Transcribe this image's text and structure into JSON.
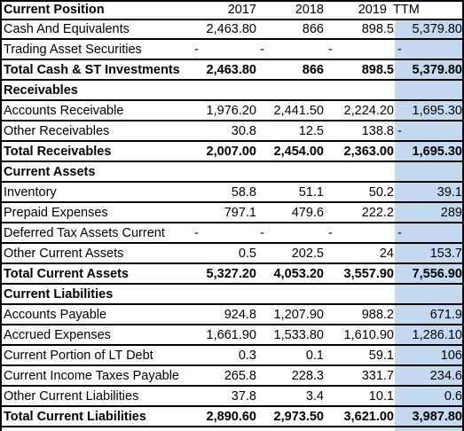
{
  "header": {
    "title": "Current Position",
    "years": [
      "2017",
      "2018",
      "2019"
    ],
    "ttm": "TTM"
  },
  "rows": [
    {
      "label": "Cash And Equivalents",
      "values": [
        "2,463.80",
        "866",
        "898.5",
        "5,379.80"
      ],
      "bold": false
    },
    {
      "label": "Trading Asset Securities",
      "values": [
        "-",
        "-",
        "-",
        "-"
      ],
      "bold": false
    },
    {
      "label": "Total Cash & ST Investments",
      "values": [
        "2,463.80",
        "866",
        "898.5",
        "5,379.80"
      ],
      "bold": true
    },
    {
      "label": "Receivables",
      "values": [
        "",
        "",
        "",
        ""
      ],
      "bold": true
    },
    {
      "label": "Accounts Receivable",
      "values": [
        "1,976.20",
        "2,441.50",
        "2,224.20",
        "1,695.30"
      ],
      "bold": false
    },
    {
      "label": "Other Receivables",
      "values": [
        "30.8",
        "12.5",
        "138.8",
        "-"
      ],
      "bold": false
    },
    {
      "label": "Total Receivables",
      "values": [
        "2,007.00",
        "2,454.00",
        "2,363.00",
        "1,695.30"
      ],
      "bold": true
    },
    {
      "label": "Current Assets",
      "values": [
        "",
        "",
        "",
        ""
      ],
      "bold": true
    },
    {
      "label": "Inventory",
      "values": [
        "58.8",
        "51.1",
        "50.2",
        "39.1"
      ],
      "bold": false
    },
    {
      "label": "Prepaid Expenses",
      "values": [
        "797.1",
        "479.6",
        "222.2",
        "289"
      ],
      "bold": false
    },
    {
      "label": "Deferred Tax Assets Current",
      "values": [
        "-",
        "-",
        "-",
        "-"
      ],
      "bold": false
    },
    {
      "label": "Other Current Assets",
      "values": [
        "0.5",
        "202.5",
        "24",
        "153.7"
      ],
      "bold": false
    },
    {
      "label": "Total Current Assets",
      "values": [
        "5,327.20",
        "4,053.20",
        "3,557.90",
        "7,556.90"
      ],
      "bold": true
    },
    {
      "label": "Current Liabilities",
      "values": [
        "",
        "",
        "",
        ""
      ],
      "bold": true
    },
    {
      "label": "Accounts Payable",
      "values": [
        "924.8",
        "1,207.90",
        "988.2",
        "671.9"
      ],
      "bold": false
    },
    {
      "label": "Accrued Expenses",
      "values": [
        "1,661.90",
        "1,533.80",
        "1,610.90",
        "1,286.10"
      ],
      "bold": false
    },
    {
      "label": "Current Portion of LT Debt",
      "values": [
        "0.3",
        "0.1",
        "59.1",
        "106"
      ],
      "bold": false
    },
    {
      "label": "Current Income Taxes Payable",
      "values": [
        "265.8",
        "228.3",
        "331.7",
        "234.6"
      ],
      "bold": false
    },
    {
      "label": "Other Current Liabilities",
      "values": [
        "37.8",
        "3.4",
        "10.1",
        "0.6"
      ],
      "bold": false
    },
    {
      "label": "Total Current Liabilities",
      "values": [
        "2,890.60",
        "2,973.50",
        "3,621.00",
        "3,987.80"
      ],
      "bold": true
    }
  ],
  "colors": {
    "ttm_column_fill": "#c5d9f1",
    "grid_line": "#000000",
    "text": "#000000"
  }
}
